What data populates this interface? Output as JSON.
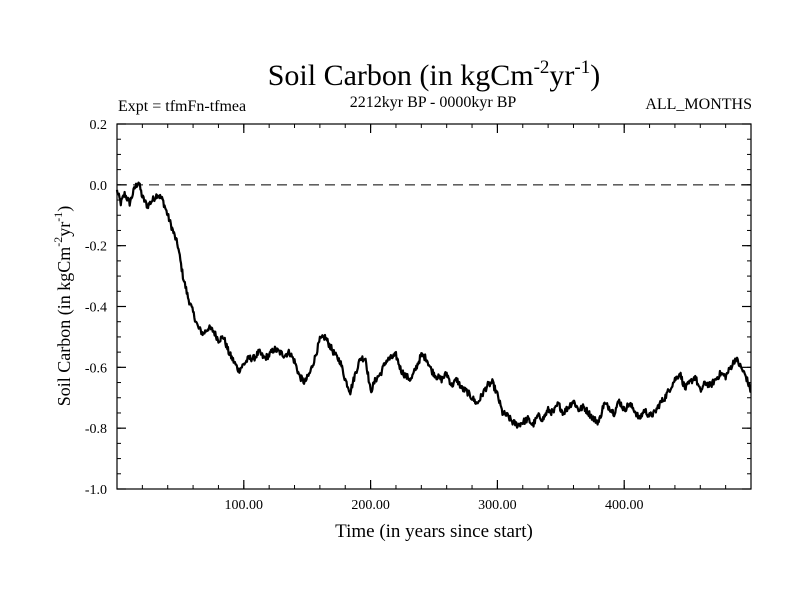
{
  "chart_data": {
    "type": "line",
    "title_main": "Soil Carbon (in kgCm",
    "title_sup1": "-2",
    "title_mid": "yr",
    "title_sup2": "-1",
    "title_end": ")",
    "expt_label": "Expt = tfmFn-tfmea",
    "period_label": "2212kyr BP - 0000kyr BP",
    "season_label": "ALL_MONTHS",
    "xlabel": "Time (in years since start)",
    "ylabel_main": "Soil Carbon (in kgCm",
    "ylabel_sup1": "-2",
    "ylabel_mid": "yr",
    "ylabel_sup2": "-1",
    "ylabel_end": ")",
    "xlim": [
      0,
      500
    ],
    "ylim": [
      -1.0,
      0.2
    ],
    "x_ticks": [
      100,
      200,
      300,
      400
    ],
    "x_tick_labels": [
      "100.00",
      "200.00",
      "300.00",
      "400.00"
    ],
    "y_ticks": [
      0.2,
      0.0,
      -0.2,
      -0.4,
      -0.6,
      -0.8,
      -1.0
    ],
    "y_tick_labels": [
      "0.2",
      "0.0",
      "-0.2",
      "-0.4",
      "-0.6",
      "-0.8",
      "-1.0"
    ],
    "reference_line": 0.0,
    "series": [
      {
        "name": "Soil Carbon",
        "color": "#000000",
        "x": [
          0,
          3,
          6,
          10,
          14,
          17,
          20,
          24,
          28,
          32,
          36,
          40,
          44,
          48,
          52,
          56,
          60,
          64,
          68,
          72,
          76,
          80,
          84,
          88,
          92,
          96,
          100,
          104,
          108,
          112,
          116,
          120,
          124,
          128,
          132,
          136,
          140,
          144,
          148,
          152,
          156,
          160,
          164,
          168,
          172,
          176,
          180,
          184,
          188,
          192,
          196,
          200,
          204,
          208,
          212,
          216,
          220,
          224,
          228,
          232,
          236,
          240,
          244,
          248,
          252,
          256,
          260,
          264,
          268,
          272,
          276,
          280,
          284,
          288,
          292,
          296,
          300,
          304,
          308,
          312,
          316,
          320,
          324,
          328,
          332,
          336,
          340,
          344,
          348,
          352,
          356,
          360,
          364,
          368,
          372,
          376,
          380,
          384,
          388,
          392,
          396,
          400,
          404,
          408,
          412,
          416,
          420,
          424,
          428,
          432,
          436,
          440,
          444,
          448,
          452,
          456,
          460,
          464,
          468,
          472,
          476,
          480,
          484,
          488,
          492,
          496,
          500
        ],
        "values": [
          -0.02,
          -0.06,
          -0.03,
          -0.06,
          -0.01,
          0.01,
          -0.04,
          -0.07,
          -0.05,
          -0.03,
          -0.05,
          -0.1,
          -0.15,
          -0.2,
          -0.3,
          -0.37,
          -0.42,
          -0.47,
          -0.49,
          -0.47,
          -0.48,
          -0.51,
          -0.5,
          -0.55,
          -0.58,
          -0.61,
          -0.59,
          -0.57,
          -0.57,
          -0.55,
          -0.57,
          -0.56,
          -0.54,
          -0.55,
          -0.56,
          -0.55,
          -0.58,
          -0.63,
          -0.65,
          -0.62,
          -0.57,
          -0.51,
          -0.5,
          -0.53,
          -0.56,
          -0.58,
          -0.64,
          -0.68,
          -0.62,
          -0.57,
          -0.57,
          -0.68,
          -0.64,
          -0.62,
          -0.58,
          -0.57,
          -0.56,
          -0.61,
          -0.63,
          -0.64,
          -0.6,
          -0.56,
          -0.57,
          -0.61,
          -0.63,
          -0.64,
          -0.62,
          -0.66,
          -0.64,
          -0.67,
          -0.68,
          -0.7,
          -0.72,
          -0.69,
          -0.66,
          -0.65,
          -0.69,
          -0.75,
          -0.76,
          -0.78,
          -0.79,
          -0.78,
          -0.77,
          -0.79,
          -0.76,
          -0.77,
          -0.74,
          -0.75,
          -0.72,
          -0.75,
          -0.73,
          -0.71,
          -0.74,
          -0.73,
          -0.75,
          -0.77,
          -0.78,
          -0.72,
          -0.73,
          -0.75,
          -0.71,
          -0.74,
          -0.72,
          -0.74,
          -0.77,
          -0.74,
          -0.76,
          -0.75,
          -0.72,
          -0.7,
          -0.67,
          -0.64,
          -0.62,
          -0.67,
          -0.65,
          -0.63,
          -0.68,
          -0.65,
          -0.66,
          -0.64,
          -0.62,
          -0.63,
          -0.6,
          -0.57,
          -0.6,
          -0.63,
          -0.68
        ]
      }
    ]
  }
}
